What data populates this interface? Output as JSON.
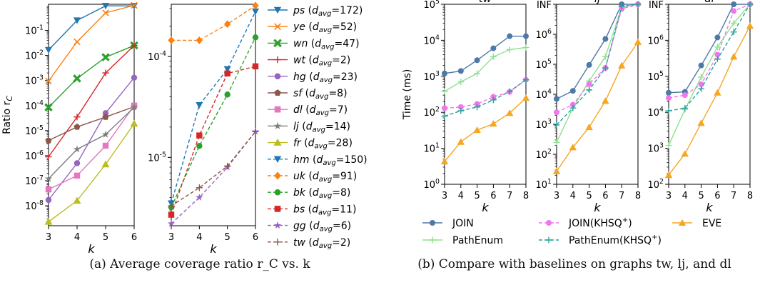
{
  "captions": {
    "a": "(a) Average coverage ratio r_C vs. k",
    "b": "(b) Compare with baselines on graphs tw, lj, and dl"
  },
  "chart_data": [
    {
      "id": "a-left",
      "type": "line",
      "log_y": true,
      "ylabel": "Ratio r_C",
      "xlabel": "k",
      "x": [
        3,
        4,
        5,
        6
      ],
      "xlim": [
        3,
        6
      ],
      "ylim": [
        1.6e-09,
        1.1
      ],
      "yticks": [
        1e-08,
        1e-07,
        1e-06,
        1e-05,
        0.0001,
        0.001,
        0.01,
        0.1
      ],
      "ytick_labels": [
        "10^-8",
        "10^-7",
        "10^-6",
        "10^-5",
        "10^-4",
        "10^-3",
        "10^-2",
        "10^-1"
      ],
      "series": [
        {
          "name": "ps (d_avg=172)",
          "color": "#1f77b4",
          "marker": "tri_down",
          "dash": false,
          "values": [
            0.0165,
            0.25,
            0.95,
            0.95
          ]
        },
        {
          "name": "ye (d_avg=52)",
          "color": "#ff7f0e",
          "marker": "x",
          "dash": false,
          "values": [
            0.00095,
            0.035,
            0.5,
            1.0
          ]
        },
        {
          "name": "wn (d_avg=47)",
          "color": "#2ca02c",
          "marker": "X",
          "dash": false,
          "values": [
            8.5e-05,
            0.0012,
            0.0085,
            0.025
          ]
        },
        {
          "name": "wt (d_avg=2)",
          "color": "#d62728",
          "marker": "plus",
          "dash": false,
          "values": [
            9e-07,
            3.5e-05,
            0.002,
            0.025
          ]
        },
        {
          "name": "hg (d_avg=23)",
          "color": "#9467bd",
          "marker": "circle",
          "dash": false,
          "values": [
            1.7e-08,
            5e-07,
            5e-05,
            0.0013
          ]
        },
        {
          "name": "sf (d_avg=8)",
          "color": "#8c564b",
          "marker": "pentagon",
          "dash": false,
          "values": [
            4e-06,
            1.4e-05,
            3.5e-05,
            9e-05
          ]
        },
        {
          "name": "dl (d_avg=7)",
          "color": "#e377c2",
          "marker": "square",
          "dash": false,
          "values": [
            4.5e-08,
            1.6e-07,
            2.5e-06,
            0.0001
          ]
        },
        {
          "name": "lj (d_avg=14)",
          "color": "#7f7f7f",
          "marker": "star",
          "dash": false,
          "values": [
            1.2e-07,
            1.8e-06,
            7e-06,
            8.5e-05
          ]
        },
        {
          "name": "fr (d_avg=28)",
          "color": "#bcbd22",
          "marker": "tri_up",
          "dash": false,
          "values": [
            2.3e-09,
            1.6e-08,
            4.5e-07,
            1.9e-05
          ]
        }
      ]
    },
    {
      "id": "a-right",
      "type": "line",
      "log_y": true,
      "xlabel": "k",
      "x": [
        3,
        4,
        5,
        6
      ],
      "xlim": [
        3,
        6
      ],
      "ylim": [
        2.1e-06,
        0.00033
      ],
      "yticks": [
        1e-05,
        0.0001
      ],
      "ytick_labels": [
        "10^-5",
        "10^-4"
      ],
      "series": [
        {
          "name": "hm (d_avg=150)",
          "color": "#1f77b4",
          "marker": "tri_down",
          "dash": true,
          "values": [
            3.5e-06,
            3.3e-05,
            7.5e-05,
            0.00028
          ]
        },
        {
          "name": "uk (d_avg=91)",
          "color": "#ff7f0e",
          "marker": "diamond",
          "dash": true,
          "values": [
            0.000145,
            0.000145,
            0.00021,
            0.00032
          ]
        },
        {
          "name": "bk (d_avg=8)",
          "color": "#2ca02c",
          "marker": "circle",
          "dash": true,
          "values": [
            3.2e-06,
            1.3e-05,
            4.2e-05,
            0.000155
          ]
        },
        {
          "name": "bs (d_avg=11)",
          "color": "#d62728",
          "marker": "square",
          "dash": true,
          "values": [
            2.7e-06,
            1.65e-05,
            6.8e-05,
            8e-05
          ]
        },
        {
          "name": "gg (d_avg=6)",
          "color": "#9467bd",
          "marker": "star",
          "dash": true,
          "values": [
            2.2e-06,
            4e-06,
            8e-06,
            1.8e-05
          ]
        },
        {
          "name": "tw (d_avg=2)",
          "color": "#8c564b",
          "marker": "plus",
          "dash": true,
          "values": [
            3.3e-06,
            5e-06,
            8.2e-06,
            1.8e-05
          ]
        }
      ]
    },
    {
      "id": "b-tw",
      "type": "line",
      "log_y": true,
      "title": "tw",
      "ylabel": "Time (ms)",
      "xlabel": "k",
      "x": [
        3,
        4,
        5,
        6,
        7,
        8
      ],
      "xlim": [
        3,
        8
      ],
      "ylim": [
        1,
        100000
      ],
      "yticks": [
        1,
        10,
        100,
        1000,
        10000,
        100000
      ],
      "ytick_labels": [
        "10^0",
        "10^1",
        "10^2",
        "10^3",
        "10^4",
        "10^5"
      ],
      "series": [
        {
          "name": "JOIN",
          "values": [
            1200,
            1400,
            2800,
            6000,
            13000,
            13000
          ]
        },
        {
          "name": "PathEnum",
          "values": [
            380,
            700,
            1200,
            3500,
            5500,
            6300
          ]
        },
        {
          "name": "JOIN(KHSQ+)",
          "values": [
            130,
            140,
            170,
            270,
            370,
            800
          ]
        },
        {
          "name": "PathEnum(KHSQ+)",
          "values": [
            78,
            110,
            140,
            220,
            380,
            800
          ]
        },
        {
          "name": "EVE",
          "values": [
            4.3,
            15,
            32,
            48,
            95,
            250
          ]
        }
      ]
    },
    {
      "id": "b-lj",
      "type": "line",
      "log_y": true,
      "title": "lj",
      "xlabel": "k",
      "x": [
        3,
        4,
        5,
        6,
        7,
        8
      ],
      "xlim": [
        3,
        8
      ],
      "ylim": [
        10,
        10000000
      ],
      "yticks": [
        10,
        100,
        1000,
        10000,
        100000,
        1000000,
        10000000
      ],
      "ytick_labels": [
        "10^1",
        "10^2",
        "10^3",
        "10^4",
        "10^5",
        "10^6",
        "INF"
      ],
      "series": [
        {
          "name": "JOIN",
          "values": [
            7000,
            13000,
            95000,
            700000,
            10000000,
            10000000
          ]
        },
        {
          "name": "PathEnum",
          "values": [
            250,
            3500,
            28000,
            180000,
            8000000,
            10000000
          ]
        },
        {
          "name": "JOIN(KHSQ+)",
          "values": [
            2500,
            4500,
            22000,
            75000,
            7000000,
            10000000
          ]
        },
        {
          "name": "PathEnum(KHSQ+)",
          "values": [
            950,
            3500,
            14000,
            75000,
            8500000,
            10000000
          ]
        },
        {
          "name": "EVE",
          "values": [
            27,
            170,
            800,
            6000,
            90000,
            550000
          ]
        }
      ]
    },
    {
      "id": "b-dl",
      "type": "line",
      "log_y": true,
      "title": "dl",
      "xlabel": "k",
      "x": [
        3,
        4,
        5,
        6,
        7,
        8
      ],
      "xlim": [
        3,
        8
      ],
      "ylim": [
        100,
        10000000
      ],
      "yticks": [
        100,
        1000,
        10000,
        100000,
        1000000,
        10000000
      ],
      "ytick_labels": [
        "10^2",
        "10^3",
        "10^4",
        "10^5",
        "10^6",
        "INF"
      ],
      "series": [
        {
          "name": "JOIN",
          "values": [
            35000,
            37000,
            200000,
            1200000,
            10000000,
            10000000
          ]
        },
        {
          "name": "PathEnum",
          "values": [
            1200,
            12000,
            95000,
            650000,
            3000000,
            10000000
          ]
        },
        {
          "name": "JOIN(KHSQ+)",
          "values": [
            25000,
            30000,
            60000,
            400000,
            6500000,
            10000000
          ]
        },
        {
          "name": "PathEnum(KHSQ+)",
          "values": [
            11000,
            13000,
            45000,
            300000,
            1700000,
            10000000
          ]
        },
        {
          "name": "EVE",
          "values": [
            180,
            700,
            5000,
            35000,
            350000,
            2500000
          ]
        }
      ]
    }
  ],
  "legend_b": [
    {
      "name": "JOIN",
      "color": "#4e79a7",
      "marker": "circle",
      "dash": false
    },
    {
      "name": "PathEnum",
      "color": "#8ce28c",
      "marker": "plus",
      "dash": false
    },
    {
      "name": "JOIN(KHSQ+)",
      "color": "#ee77ee",
      "marker": "circle",
      "dash": true
    },
    {
      "name": "PathEnum(KHSQ+)",
      "color": "#2aa198",
      "marker": "plus",
      "dash": true
    },
    {
      "name": "EVE",
      "color": "#f5a623",
      "marker": "tri_up",
      "dash": false
    }
  ]
}
